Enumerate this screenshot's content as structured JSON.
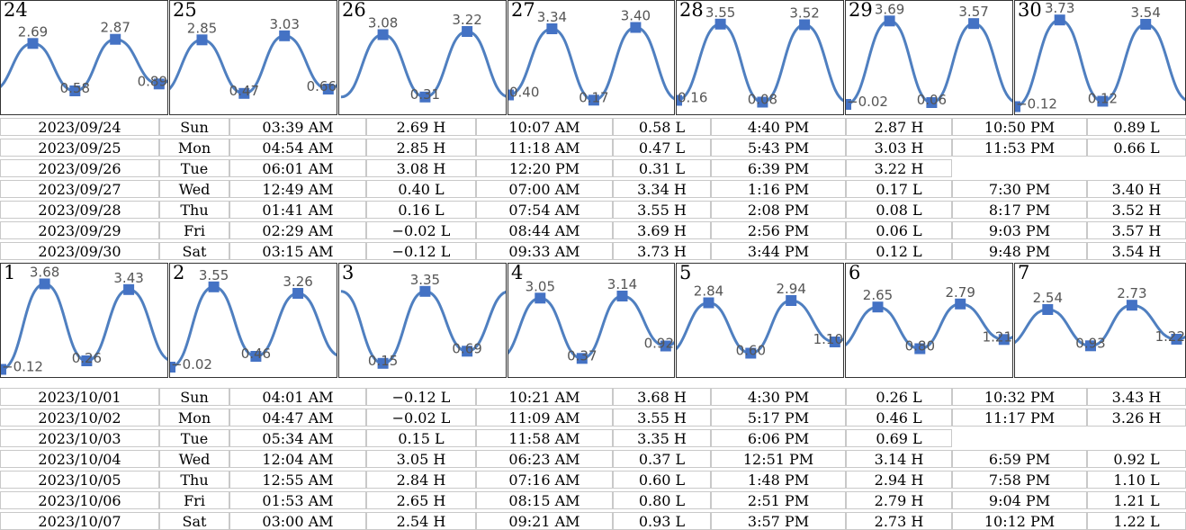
{
  "chart_data": {
    "type": "line",
    "style": {
      "line_color": "#4f7fc0",
      "marker_color": "#4472c4",
      "label_color": "#555555"
    },
    "weeks": [
      {
        "panels": [
          {
            "day": "24",
            "values": [
              2.69,
              0.58,
              2.87,
              0.89
            ],
            "labels": [
              "2.69",
              "0.58",
              "2.87",
              "0.89"
            ]
          },
          {
            "day": "25",
            "values": [
              2.85,
              0.47,
              3.03,
              0.66
            ],
            "labels": [
              "2.85",
              "0.47",
              "3.03",
              "0.66"
            ]
          },
          {
            "day": "26",
            "values": [
              3.08,
              0.31,
              3.22
            ],
            "labels": [
              "3.08",
              "0.31",
              "3.22"
            ]
          },
          {
            "day": "27",
            "values": [
              0.4,
              3.34,
              0.17,
              3.4
            ],
            "labels": [
              "0.40",
              "3.34",
              "0.17",
              "3.40"
            ]
          },
          {
            "day": "28",
            "values": [
              0.16,
              3.55,
              0.08,
              3.52
            ],
            "labels": [
              "0.16",
              "3.55",
              "0.08",
              "3.52"
            ]
          },
          {
            "day": "29",
            "values": [
              -0.02,
              3.69,
              0.06,
              3.57
            ],
            "labels": [
              "−0.02",
              "3.69",
              "0.06",
              "3.57"
            ]
          },
          {
            "day": "30",
            "values": [
              -0.12,
              3.73,
              0.12,
              3.54
            ],
            "labels": [
              "−0.12",
              "3.73",
              "0.12",
              "3.54"
            ]
          }
        ],
        "rows": [
          [
            "2023/09/24",
            "Sun",
            "03:39 AM",
            "2.69 H",
            "10:07 AM",
            "0.58 L",
            "4:40 PM",
            "2.87 H",
            "10:50 PM",
            "0.89 L"
          ],
          [
            "2023/09/25",
            "Mon",
            "04:54 AM",
            "2.85 H",
            "11:18 AM",
            "0.47 L",
            "5:43 PM",
            "3.03 H",
            "11:53 PM",
            "0.66 L"
          ],
          [
            "2023/09/26",
            "Tue",
            "06:01 AM",
            "3.08 H",
            "12:20 PM",
            "0.31 L",
            "6:39 PM",
            "3.22 H",
            "",
            ""
          ],
          [
            "2023/09/27",
            "Wed",
            "12:49 AM",
            "0.40 L",
            "07:00 AM",
            "3.34 H",
            "1:16 PM",
            "0.17 L",
            "7:30 PM",
            "3.40 H"
          ],
          [
            "2023/09/28",
            "Thu",
            "01:41 AM",
            "0.16 L",
            "07:54 AM",
            "3.55 H",
            "2:08 PM",
            "0.08 L",
            "8:17 PM",
            "3.52 H"
          ],
          [
            "2023/09/29",
            "Fri",
            "02:29 AM",
            "−0.02 L",
            "08:44 AM",
            "3.69 H",
            "2:56 PM",
            "0.06 L",
            "9:03 PM",
            "3.57 H"
          ],
          [
            "2023/09/30",
            "Sat",
            "03:15 AM",
            "−0.12 L",
            "09:33 AM",
            "3.73 H",
            "3:44 PM",
            "0.12 L",
            "9:48 PM",
            "3.54 H"
          ]
        ]
      },
      {
        "panels": [
          {
            "day": "1",
            "values": [
              -0.12,
              3.68,
              0.26,
              3.43
            ],
            "labels": [
              "−0.12",
              "3.68",
              "0.26",
              "3.43"
            ]
          },
          {
            "day": "2",
            "values": [
              -0.02,
              3.55,
              0.46,
              3.26
            ],
            "labels": [
              "−0.02",
              "3.55",
              "0.46",
              "3.26"
            ]
          },
          {
            "day": "3",
            "values": [
              0.15,
              3.35,
              0.69
            ],
            "labels": [
              "0.15",
              "3.35",
              "0.69"
            ]
          },
          {
            "day": "4",
            "values": [
              3.05,
              0.37,
              3.14,
              0.92
            ],
            "labels": [
              "3.05",
              "0.37",
              "3.14",
              "0.92"
            ]
          },
          {
            "day": "5",
            "values": [
              2.84,
              0.6,
              2.94,
              1.1
            ],
            "labels": [
              "2.84",
              "0.60",
              "2.94",
              "1.10"
            ]
          },
          {
            "day": "6",
            "values": [
              2.65,
              0.8,
              2.79,
              1.21
            ],
            "labels": [
              "2.65",
              "0.80",
              "2.79",
              "1.21"
            ]
          },
          {
            "day": "7",
            "values": [
              2.54,
              0.93,
              2.73,
              1.22
            ],
            "labels": [
              "2.54",
              "0.93",
              "2.73",
              "1.22"
            ]
          }
        ],
        "rows": [
          [
            "2023/10/01",
            "Sun",
            "04:01 AM",
            "−0.12 L",
            "10:21 AM",
            "3.68 H",
            "4:30 PM",
            "0.26 L",
            "10:32 PM",
            "3.43 H"
          ],
          [
            "2023/10/02",
            "Mon",
            "04:47 AM",
            "−0.02 L",
            "11:09 AM",
            "3.55 H",
            "5:17 PM",
            "0.46 L",
            "11:17 PM",
            "3.26 H"
          ],
          [
            "2023/10/03",
            "Tue",
            "05:34 AM",
            "0.15 L",
            "11:58 AM",
            "3.35 H",
            "6:06 PM",
            "0.69 L",
            "",
            ""
          ],
          [
            "2023/10/04",
            "Wed",
            "12:04 AM",
            "3.05 H",
            "06:23 AM",
            "0.37 L",
            "12:51 PM",
            "3.14 H",
            "6:59 PM",
            "0.92 L"
          ],
          [
            "2023/10/05",
            "Thu",
            "12:55 AM",
            "2.84 H",
            "07:16 AM",
            "0.60 L",
            "1:48 PM",
            "2.94 H",
            "7:58 PM",
            "1.10 L"
          ],
          [
            "2023/10/06",
            "Fri",
            "01:53 AM",
            "2.65 H",
            "08:15 AM",
            "0.80 L",
            "2:51 PM",
            "2.79 H",
            "9:04 PM",
            "1.21 L"
          ],
          [
            "2023/10/07",
            "Sat",
            "03:00 AM",
            "2.54 H",
            "09:21 AM",
            "0.93 L",
            "3:57 PM",
            "2.73 H",
            "10:12 PM",
            "1.22 L"
          ]
        ]
      }
    ]
  }
}
